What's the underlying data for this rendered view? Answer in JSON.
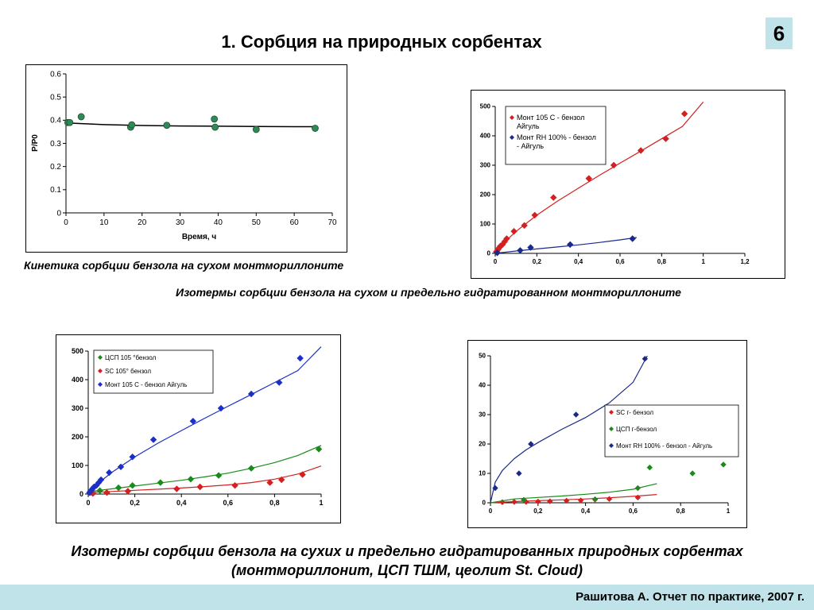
{
  "header": {
    "title": "1. Сорбция на природных сорбентах",
    "slide_number": "6"
  },
  "captions": {
    "c1": "Кинетика сорбции бензола на сухом монтмориллоните",
    "c2": "Изотермы сорбции бензола на сухом и предельно гидратированном монтмориллоните",
    "c3_line1": "Изотермы сорбции бензола на сухих и предельно гидратированных природных сорбентах",
    "c3_line2": "(монтмориллонит, ЦСП ТШМ, цеолит St. Cloud)"
  },
  "footer": {
    "text": "Рашитова  А.   Отчет по практике, 2007 г."
  },
  "chart_data": [
    {
      "type": "scatter",
      "xlabel": "Время, ч",
      "ylabel": "P/P0",
      "xlim": [
        0,
        70
      ],
      "ylim": [
        0,
        0.6
      ],
      "xticks": [
        "0",
        "10",
        "20",
        "30",
        "40",
        "50",
        "60",
        "70"
      ],
      "yticks": [
        "0",
        "0.1",
        "0.2",
        "0.3",
        "0.4",
        "0.5",
        "0.6"
      ],
      "grid": false,
      "series": [
        {
          "color": "#2e8b57",
          "marker": "circle",
          "x": [
            0.5,
            1,
            4,
            17,
            17.3,
            26.5,
            39,
            39.2,
            50,
            65.5
          ],
          "y": [
            0.39,
            0.39,
            0.415,
            0.37,
            0.38,
            0.378,
            0.405,
            0.37,
            0.36,
            0.365
          ],
          "fit_x": [
            0,
            10,
            20,
            30,
            40,
            50,
            60,
            65
          ],
          "fit_y": [
            0.388,
            0.381,
            0.377,
            0.375,
            0.374,
            0.373,
            0.372,
            0.372
          ]
        }
      ]
    },
    {
      "type": "scatter",
      "xlim": [
        0,
        1.2
      ],
      "ylim": [
        0,
        500
      ],
      "xticks": [
        "0",
        "0,2",
        "0,4",
        "0,6",
        "0,8",
        "1",
        "1,2"
      ],
      "yticks": [
        "0",
        "100",
        "200",
        "300",
        "400",
        "500"
      ],
      "grid": false,
      "legend": "top-left",
      "series": [
        {
          "name": "Монт 105 С - бензол Айгуль",
          "color": "#d42020",
          "marker": "diamond",
          "x": [
            0.005,
            0.01,
            0.015,
            0.02,
            0.025,
            0.035,
            0.045,
            0.055,
            0.09,
            0.14,
            0.19,
            0.28,
            0.45,
            0.57,
            0.7,
            0.82,
            0.91
          ],
          "y": [
            5,
            10,
            15,
            20,
            25,
            30,
            40,
            50,
            75,
            95,
            130,
            190,
            255,
            300,
            350,
            390,
            475
          ],
          "fit_x": [
            0,
            0.05,
            0.1,
            0.2,
            0.3,
            0.4,
            0.5,
            0.6,
            0.7,
            0.8,
            0.9,
            1.0
          ],
          "fit_y": [
            0,
            42,
            75,
            130,
            178,
            222,
            265,
            307,
            348,
            390,
            432,
            515
          ]
        },
        {
          "name": "Монт RH 100% - бензол - Айгуль",
          "color": "#1a2a8a",
          "marker": "diamond",
          "x": [
            0.01,
            0.12,
            0.17,
            0.36,
            0.66
          ],
          "y": [
            2,
            10,
            20,
            30,
            50
          ],
          "fit_x": [
            0,
            0.1,
            0.2,
            0.3,
            0.4,
            0.5,
            0.6,
            0.68
          ],
          "fit_y": [
            0,
            8,
            15,
            22,
            29,
            37,
            46,
            54
          ]
        }
      ]
    },
    {
      "type": "scatter",
      "xlim": [
        0,
        1
      ],
      "ylim": [
        0,
        500
      ],
      "xticks": [
        "0",
        "0,2",
        "0,4",
        "0,6",
        "0,8",
        "1"
      ],
      "yticks": [
        "0",
        "100",
        "200",
        "300",
        "400",
        "500"
      ],
      "grid": false,
      "legend": "top-left",
      "series": [
        {
          "name": "ЦСП 105 °бензол",
          "color": "#1a8a1a",
          "marker": "diamond",
          "x": [
            0.01,
            0.05,
            0.13,
            0.19,
            0.31,
            0.44,
            0.56,
            0.7,
            0.99
          ],
          "y": [
            5,
            12,
            22,
            30,
            40,
            52,
            65,
            90,
            157
          ],
          "fit_x": [
            0,
            0.1,
            0.2,
            0.3,
            0.4,
            0.5,
            0.6,
            0.7,
            0.8,
            0.9,
            1.0
          ],
          "fit_y": [
            8,
            18,
            28,
            38,
            48,
            60,
            73,
            90,
            110,
            135,
            170
          ]
        },
        {
          "name": "SC 105° бензол",
          "color": "#d42020",
          "marker": "diamond",
          "x": [
            0.02,
            0.08,
            0.17,
            0.38,
            0.48,
            0.63,
            0.78,
            0.83,
            0.92
          ],
          "y": [
            2,
            5,
            10,
            18,
            25,
            30,
            40,
            50,
            68
          ],
          "fit_x": [
            0,
            0.1,
            0.2,
            0.3,
            0.4,
            0.5,
            0.6,
            0.7,
            0.8,
            0.9,
            1.0
          ],
          "fit_y": [
            5,
            9,
            13,
            17,
            21,
            26,
            32,
            40,
            52,
            70,
            98
          ]
        },
        {
          "name": "Монт 105 С - бензол Айгуль",
          "color": "#1a30c8",
          "marker": "diamond",
          "x": [
            0.005,
            0.01,
            0.015,
            0.02,
            0.025,
            0.035,
            0.045,
            0.055,
            0.09,
            0.14,
            0.19,
            0.28,
            0.45,
            0.57,
            0.7,
            0.82,
            0.91
          ],
          "y": [
            5,
            10,
            15,
            20,
            25,
            30,
            40,
            50,
            75,
            95,
            130,
            190,
            255,
            300,
            350,
            390,
            475
          ],
          "fit_x": [
            0,
            0.05,
            0.1,
            0.2,
            0.3,
            0.4,
            0.5,
            0.6,
            0.7,
            0.8,
            0.9,
            1.0
          ],
          "fit_y": [
            0,
            42,
            75,
            130,
            178,
            222,
            265,
            307,
            348,
            390,
            432,
            515
          ]
        }
      ]
    },
    {
      "type": "scatter",
      "xlim": [
        0,
        1
      ],
      "ylim": [
        0,
        50
      ],
      "xticks": [
        "0",
        "0,2",
        "0,4",
        "0,6",
        "0,8",
        "1"
      ],
      "yticks": [
        "0",
        "10",
        "20",
        "30",
        "40",
        "50"
      ],
      "grid": false,
      "legend": "right",
      "series": [
        {
          "name": "SC г- бензол",
          "color": "#d42020",
          "marker": "diamond",
          "x": [
            0.05,
            0.1,
            0.15,
            0.2,
            0.25,
            0.32,
            0.38,
            0.44,
            0.5,
            0.62
          ],
          "y": [
            0.2,
            0.3,
            0.3,
            0.4,
            0.5,
            0.7,
            0.8,
            1.1,
            1.3,
            1.8
          ],
          "fit_x": [
            0,
            0.1,
            0.2,
            0.3,
            0.4,
            0.5,
            0.6,
            0.7
          ],
          "fit_y": [
            0,
            0.4,
            0.7,
            1.0,
            1.3,
            1.7,
            2.2,
            2.8
          ]
        },
        {
          "name": "ЦСП г-бензол",
          "color": "#1a8a1a",
          "marker": "diamond",
          "x": [
            0.14,
            0.44,
            0.62,
            0.67,
            0.85,
            0.98
          ],
          "y": [
            1,
            1.2,
            5,
            12,
            10,
            13
          ],
          "fit_x": [
            0,
            0.1,
            0.2,
            0.3,
            0.4,
            0.5,
            0.6,
            0.7
          ],
          "fit_y": [
            0,
            1.3,
            1.8,
            2.3,
            2.9,
            3.6,
            4.6,
            6.5
          ]
        },
        {
          "name": "Монт RH 100% - бензол - Айгуль",
          "color": "#1a2a8a",
          "marker": "diamond",
          "x": [
            0.02,
            0.12,
            0.17,
            0.36,
            0.65
          ],
          "y": [
            5,
            10,
            20,
            30,
            49
          ],
          "fit_x": [
            0,
            0.02,
            0.05,
            0.1,
            0.15,
            0.2,
            0.3,
            0.4,
            0.5,
            0.6,
            0.66
          ],
          "fit_y": [
            0,
            7,
            11,
            15,
            18,
            20.5,
            25,
            29,
            34,
            41,
            50
          ]
        }
      ]
    }
  ]
}
